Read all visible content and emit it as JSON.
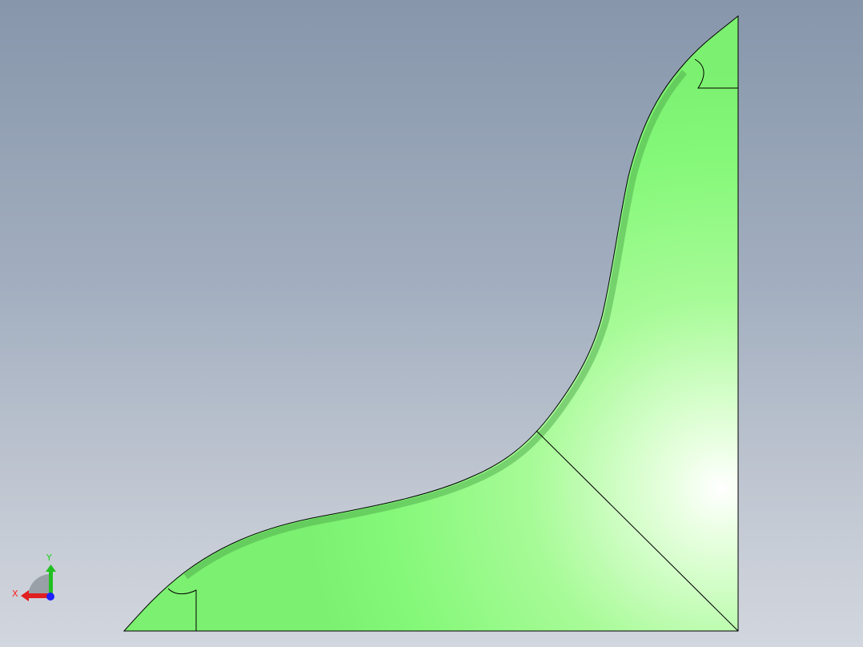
{
  "viewport": {
    "part_color": "#80ff80",
    "edge_color": "#000000",
    "background_top": "#8796ab",
    "background_bottom": "#d2d6de"
  },
  "triad": {
    "x_label": "X",
    "y_label": "Y",
    "x_color": "#ff2020",
    "y_color": "#20d020",
    "z_color": "#2020ff"
  }
}
